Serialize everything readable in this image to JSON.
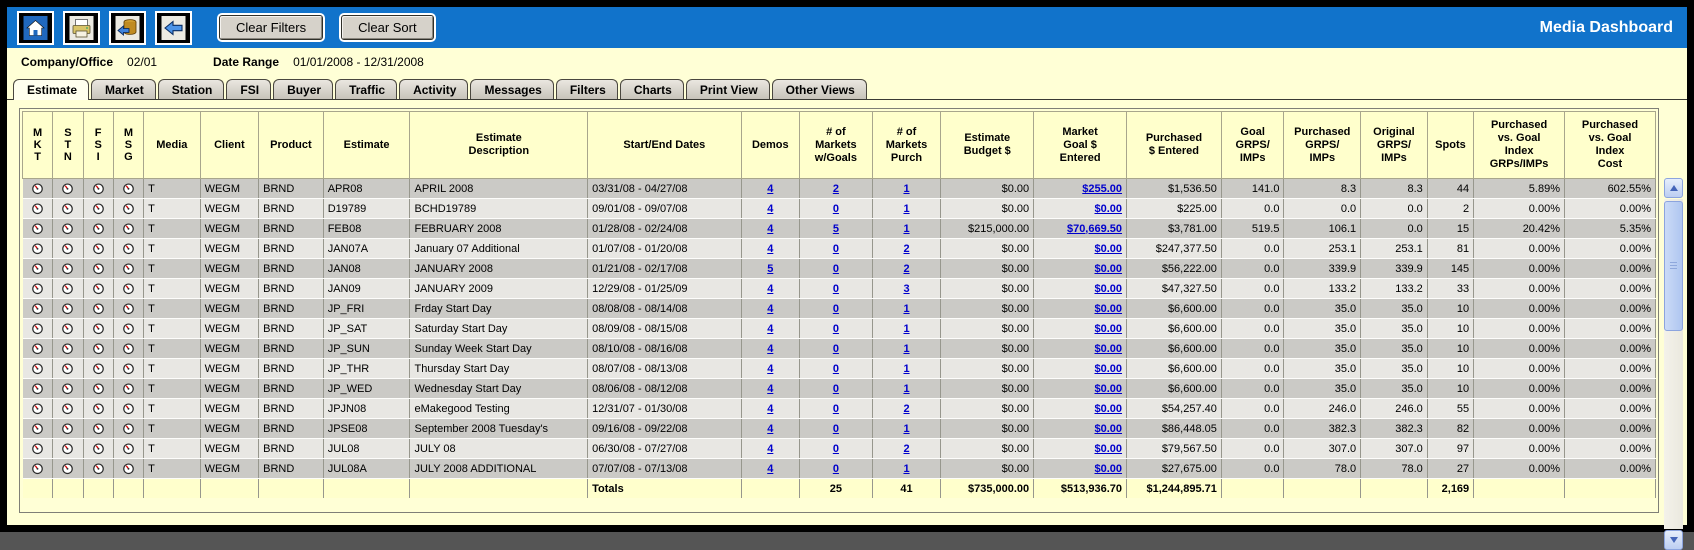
{
  "topbar": {
    "icons": [
      "home-icon",
      "print-icon",
      "database-back-icon",
      "back-arrow-icon"
    ],
    "clear_filters_label": "Clear Filters",
    "clear_sort_label": "Clear Sort",
    "title": "Media Dashboard"
  },
  "info": {
    "company_office_label": "Company/Office",
    "company_office_value": "02/01",
    "date_range_label": "Date Range",
    "date_range_value": "01/01/2008 - 12/31/2008"
  },
  "tabs": [
    {
      "label": "Estimate",
      "active": true
    },
    {
      "label": "Market",
      "active": false
    },
    {
      "label": "Station",
      "active": false
    },
    {
      "label": "FSI",
      "active": false
    },
    {
      "label": "Buyer",
      "active": false
    },
    {
      "label": "Traffic",
      "active": false
    },
    {
      "label": "Activity",
      "active": false
    },
    {
      "label": "Messages",
      "active": false
    },
    {
      "label": "Filters",
      "active": false
    },
    {
      "label": "Charts",
      "active": false
    },
    {
      "label": "Print View",
      "active": false
    },
    {
      "label": "Other Views",
      "active": false
    }
  ],
  "table": {
    "icon_columns": [
      "M\nK\nT",
      "S\nT\nN",
      "F\nS\nI",
      "M\nS\nG"
    ],
    "columns": [
      "Media",
      "Client",
      "Product",
      "Estimate",
      "Estimate\nDescription",
      "Start/End Dates",
      "Demos",
      "# of\nMarkets\nw/Goals",
      "# of\nMarkets\nPurch",
      "Estimate\nBudget $",
      "Market\nGoal $\nEntered",
      "Purchased\n$ Entered",
      "Goal\nGRPS/\nIMPs",
      "Purchased\nGRPS/\nIMPs",
      "Original\nGRPS/\nIMPs",
      "Spots",
      "Purchased\nvs. Goal\nIndex\nGRPs/IMPs",
      "Purchased\nvs. Goal\nIndex\nCost"
    ],
    "gauge_icon_name": "gauge-icon",
    "rows": [
      {
        "media": "T",
        "client": "WEGM",
        "product": "BRND",
        "estimate": "APR08",
        "description": "APRIL 2008",
        "dates": "03/31/08 - 04/27/08",
        "demos": "4",
        "w_goals": "2",
        "purch": "1",
        "budget": "$0.00",
        "market_goal": "$255.00",
        "purchased": "$1,536.50",
        "goal_grps": "141.0",
        "purch_grps": "8.3",
        "orig_grps": "8.3",
        "spots": "44",
        "idx_grps": "5.89%",
        "idx_cost": "602.55%"
      },
      {
        "media": "T",
        "client": "WEGM",
        "product": "BRND",
        "estimate": "D19789",
        "description": "BCHD19789",
        "dates": "09/01/08 - 09/07/08",
        "demos": "4",
        "w_goals": "0",
        "purch": "1",
        "budget": "$0.00",
        "market_goal": "$0.00",
        "purchased": "$225.00",
        "goal_grps": "0.0",
        "purch_grps": "0.0",
        "orig_grps": "0.0",
        "spots": "2",
        "idx_grps": "0.00%",
        "idx_cost": "0.00%"
      },
      {
        "media": "T",
        "client": "WEGM",
        "product": "BRND",
        "estimate": "FEB08",
        "description": "FEBRUARY 2008",
        "dates": "01/28/08 - 02/24/08",
        "demos": "4",
        "w_goals": "5",
        "purch": "1",
        "budget": "$215,000.00",
        "market_goal": "$70,669.50",
        "purchased": "$3,781.00",
        "goal_grps": "519.5",
        "purch_grps": "106.1",
        "orig_grps": "0.0",
        "spots": "15",
        "idx_grps": "20.42%",
        "idx_cost": "5.35%"
      },
      {
        "media": "T",
        "client": "WEGM",
        "product": "BRND",
        "estimate": "JAN07A",
        "description": "January 07 Additional",
        "dates": "01/07/08 - 01/20/08",
        "demos": "4",
        "w_goals": "0",
        "purch": "2",
        "budget": "$0.00",
        "market_goal": "$0.00",
        "purchased": "$247,377.50",
        "goal_grps": "0.0",
        "purch_grps": "253.1",
        "orig_grps": "253.1",
        "spots": "81",
        "idx_grps": "0.00%",
        "idx_cost": "0.00%"
      },
      {
        "media": "T",
        "client": "WEGM",
        "product": "BRND",
        "estimate": "JAN08",
        "description": "JANUARY 2008",
        "dates": "01/21/08 - 02/17/08",
        "demos": "5",
        "w_goals": "0",
        "purch": "2",
        "budget": "$0.00",
        "market_goal": "$0.00",
        "purchased": "$56,222.00",
        "goal_grps": "0.0",
        "purch_grps": "339.9",
        "orig_grps": "339.9",
        "spots": "145",
        "idx_grps": "0.00%",
        "idx_cost": "0.00%"
      },
      {
        "media": "T",
        "client": "WEGM",
        "product": "BRND",
        "estimate": "JAN09",
        "description": "JANUARY 2009",
        "dates": "12/29/08 - 01/25/09",
        "demos": "4",
        "w_goals": "0",
        "purch": "3",
        "budget": "$0.00",
        "market_goal": "$0.00",
        "purchased": "$47,327.50",
        "goal_grps": "0.0",
        "purch_grps": "133.2",
        "orig_grps": "133.2",
        "spots": "33",
        "idx_grps": "0.00%",
        "idx_cost": "0.00%"
      },
      {
        "media": "T",
        "client": "WEGM",
        "product": "BRND",
        "estimate": "JP_FRI",
        "description": "Frday Start Day",
        "dates": "08/08/08 - 08/14/08",
        "demos": "4",
        "w_goals": "0",
        "purch": "1",
        "budget": "$0.00",
        "market_goal": "$0.00",
        "purchased": "$6,600.00",
        "goal_grps": "0.0",
        "purch_grps": "35.0",
        "orig_grps": "35.0",
        "spots": "10",
        "idx_grps": "0.00%",
        "idx_cost": "0.00%"
      },
      {
        "media": "T",
        "client": "WEGM",
        "product": "BRND",
        "estimate": "JP_SAT",
        "description": "Saturday Start Day",
        "dates": "08/09/08 - 08/15/08",
        "demos": "4",
        "w_goals": "0",
        "purch": "1",
        "budget": "$0.00",
        "market_goal": "$0.00",
        "purchased": "$6,600.00",
        "goal_grps": "0.0",
        "purch_grps": "35.0",
        "orig_grps": "35.0",
        "spots": "10",
        "idx_grps": "0.00%",
        "idx_cost": "0.00%"
      },
      {
        "media": "T",
        "client": "WEGM",
        "product": "BRND",
        "estimate": "JP_SUN",
        "description": "Sunday Week Start Day",
        "dates": "08/10/08 - 08/16/08",
        "demos": "4",
        "w_goals": "0",
        "purch": "1",
        "budget": "$0.00",
        "market_goal": "$0.00",
        "purchased": "$6,600.00",
        "goal_grps": "0.0",
        "purch_grps": "35.0",
        "orig_grps": "35.0",
        "spots": "10",
        "idx_grps": "0.00%",
        "idx_cost": "0.00%"
      },
      {
        "media": "T",
        "client": "WEGM",
        "product": "BRND",
        "estimate": "JP_THR",
        "description": "Thursday Start Day",
        "dates": "08/07/08 - 08/13/08",
        "demos": "4",
        "w_goals": "0",
        "purch": "1",
        "budget": "$0.00",
        "market_goal": "$0.00",
        "purchased": "$6,600.00",
        "goal_grps": "0.0",
        "purch_grps": "35.0",
        "orig_grps": "35.0",
        "spots": "10",
        "idx_grps": "0.00%",
        "idx_cost": "0.00%"
      },
      {
        "media": "T",
        "client": "WEGM",
        "product": "BRND",
        "estimate": "JP_WED",
        "description": "Wednesday Start Day",
        "dates": "08/06/08 - 08/12/08",
        "demos": "4",
        "w_goals": "0",
        "purch": "1",
        "budget": "$0.00",
        "market_goal": "$0.00",
        "purchased": "$6,600.00",
        "goal_grps": "0.0",
        "purch_grps": "35.0",
        "orig_grps": "35.0",
        "spots": "10",
        "idx_grps": "0.00%",
        "idx_cost": "0.00%"
      },
      {
        "media": "T",
        "client": "WEGM",
        "product": "BRND",
        "estimate": "JPJN08",
        "description": "eMakegood Testing",
        "dates": "12/31/07 - 01/30/08",
        "demos": "4",
        "w_goals": "0",
        "purch": "2",
        "budget": "$0.00",
        "market_goal": "$0.00",
        "purchased": "$54,257.40",
        "goal_grps": "0.0",
        "purch_grps": "246.0",
        "orig_grps": "246.0",
        "spots": "55",
        "idx_grps": "0.00%",
        "idx_cost": "0.00%"
      },
      {
        "media": "T",
        "client": "WEGM",
        "product": "BRND",
        "estimate": "JPSE08",
        "description": "September 2008 Tuesday's",
        "dates": "09/16/08 - 09/22/08",
        "demos": "4",
        "w_goals": "0",
        "purch": "1",
        "budget": "$0.00",
        "market_goal": "$0.00",
        "purchased": "$86,448.05",
        "goal_grps": "0.0",
        "purch_grps": "382.3",
        "orig_grps": "382.3",
        "spots": "82",
        "idx_grps": "0.00%",
        "idx_cost": "0.00%"
      },
      {
        "media": "T",
        "client": "WEGM",
        "product": "BRND",
        "estimate": "JUL08",
        "description": "JULY 08",
        "dates": "06/30/08 - 07/27/08",
        "demos": "4",
        "w_goals": "0",
        "purch": "2",
        "budget": "$0.00",
        "market_goal": "$0.00",
        "purchased": "$79,567.50",
        "goal_grps": "0.0",
        "purch_grps": "307.0",
        "orig_grps": "307.0",
        "spots": "97",
        "idx_grps": "0.00%",
        "idx_cost": "0.00%"
      },
      {
        "media": "T",
        "client": "WEGM",
        "product": "BRND",
        "estimate": "JUL08A",
        "description": "JULY 2008 ADDITIONAL",
        "dates": "07/07/08 - 07/13/08",
        "demos": "4",
        "w_goals": "0",
        "purch": "1",
        "budget": "$0.00",
        "market_goal": "$0.00",
        "purchased": "$27,675.00",
        "goal_grps": "0.0",
        "purch_grps": "78.0",
        "orig_grps": "78.0",
        "spots": "27",
        "idx_grps": "0.00%",
        "idx_cost": "0.00%"
      }
    ],
    "totals": {
      "dates": "Totals",
      "w_goals": "25",
      "purch": "41",
      "budget": "$735,000.00",
      "market_goal": "$513,936.70",
      "purchased": "$1,244,895.71",
      "spots": "2,169"
    }
  },
  "colors": {
    "topbar_blue": "#1173CB",
    "page_cream": "#FFFFD6",
    "header_bg": "#FFFFCC",
    "row_dark": "#CBCAC6",
    "row_light": "#E8E7E3",
    "link_blue": "#0000CC"
  }
}
